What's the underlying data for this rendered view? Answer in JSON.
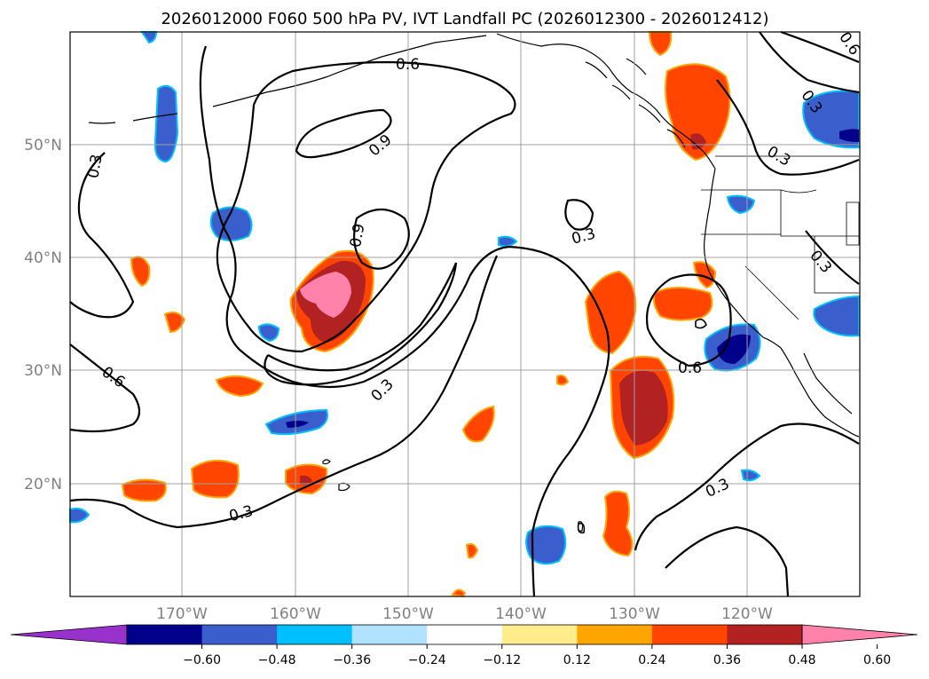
{
  "title": "2026012000 F060 500 hPa PV, IVT Landfall PC (2026012300 - 2026012412)",
  "map": {
    "lon_ticks": [
      "170°W",
      "160°W",
      "150°W",
      "140°W",
      "130°W",
      "120°W"
    ],
    "lat_ticks": [
      "50°N",
      "40°N",
      "30°N",
      "20°N"
    ],
    "contour_labels": [
      "0.3",
      "0.6",
      "0.9"
    ]
  },
  "colorbar": {
    "ticks": [
      "−0.60",
      "−0.48",
      "−0.36",
      "−0.24",
      "−0.12",
      "0.12",
      "0.24",
      "0.36",
      "0.48",
      "0.60"
    ],
    "colors": [
      "#9932cc",
      "#00008b",
      "#3a5fcd",
      "#00bfff",
      "#b0e2ff",
      "#ffffff",
      "#ffec8b",
      "#ffa500",
      "#ff4500",
      "#b22222",
      "#ff82ab"
    ],
    "extend": "both"
  }
}
